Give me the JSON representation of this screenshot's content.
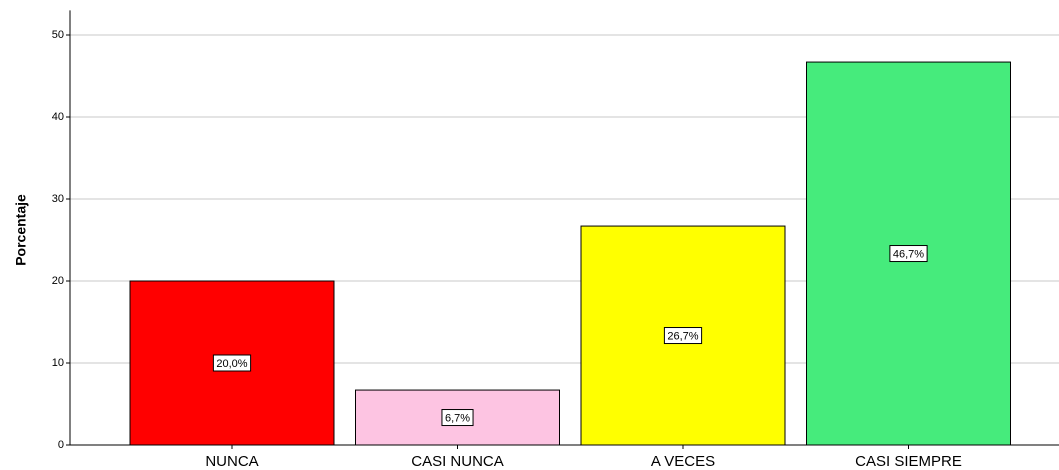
{
  "chart_data": {
    "type": "bar",
    "ylabel": "Porcentaje",
    "categories": [
      "NUNCA",
      "CASI NUNCA",
      "A VECES",
      "CASI SIEMPRE"
    ],
    "values": [
      20,
      6.7,
      26.7,
      46.7
    ],
    "value_labels": [
      "20,0%",
      "6,7%",
      "26,7%",
      "46,7%"
    ],
    "colors": [
      "#ff0000",
      "#fdc4e2",
      "#ffff00",
      "#46eb7c"
    ],
    "ylim": [
      0,
      53
    ],
    "yticks": [
      0,
      10,
      20,
      30,
      40,
      50
    ],
    "grid": true
  }
}
